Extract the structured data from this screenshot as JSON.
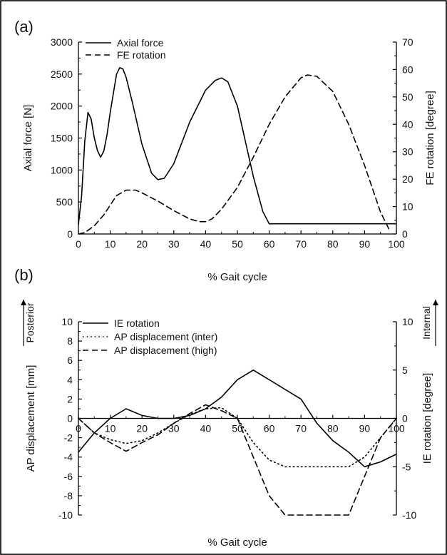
{
  "chart_data": [
    {
      "type": "line",
      "panel_label": "(a)",
      "xlabel": "% Gait cycle",
      "ylabel": "Axial force [N]",
      "y2label": "FE rotation [degree]",
      "xlim": [
        0,
        100
      ],
      "ylim": [
        0,
        3000
      ],
      "y2lim": [
        0,
        70
      ],
      "xticks": [
        "0",
        "10",
        "20",
        "30",
        "40",
        "50",
        "60",
        "70",
        "80",
        "90",
        "100"
      ],
      "yticks": [
        "0",
        "500",
        "1000",
        "1500",
        "2000",
        "2500",
        "3000"
      ],
      "y2ticks": [
        "0",
        "10",
        "20",
        "30",
        "40",
        "50",
        "60",
        "70"
      ],
      "legend_position": "top-left",
      "series": [
        {
          "name": "Axial force",
          "axis": "left",
          "line_style": "solid",
          "x": [
            0,
            1,
            2,
            3,
            4,
            5,
            6,
            7,
            8,
            9,
            10,
            12,
            13,
            14,
            15,
            17,
            20,
            23,
            25,
            27,
            30,
            35,
            40,
            43,
            45,
            47,
            50,
            55,
            58,
            60,
            65,
            70,
            80,
            90,
            95,
            100
          ],
          "y": [
            150,
            600,
            1450,
            1900,
            1800,
            1500,
            1300,
            1200,
            1300,
            1550,
            1900,
            2500,
            2600,
            2580,
            2450,
            2050,
            1400,
            950,
            850,
            870,
            1100,
            1750,
            2250,
            2400,
            2440,
            2380,
            2000,
            900,
            350,
            160,
            160,
            160,
            160,
            160,
            160,
            160
          ]
        },
        {
          "name": "FE rotation",
          "axis": "right",
          "line_style": "dashed",
          "x": [
            0,
            2,
            5,
            8,
            10,
            12,
            15,
            18,
            20,
            25,
            30,
            35,
            38,
            40,
            42,
            45,
            50,
            55,
            60,
            65,
            70,
            72,
            75,
            80,
            85,
            90,
            95,
            98
          ],
          "y": [
            0,
            0.5,
            3,
            7,
            10.5,
            14,
            16,
            16,
            15,
            12,
            8.5,
            5.5,
            4.5,
            4.5,
            5.5,
            9,
            17,
            28,
            40,
            50,
            57,
            58,
            57.5,
            52,
            40,
            25,
            8,
            1
          ]
        }
      ]
    },
    {
      "type": "line",
      "panel_label": "(b)",
      "xlabel": "% Gait cycle",
      "ylabel": "AP displacement [mm]",
      "y2label": "IE rotation [degree]",
      "left_direction_label": "Posterior",
      "right_direction_label": "Internal",
      "xlim": [
        0,
        100
      ],
      "ylim": [
        -10,
        10
      ],
      "y2lim": [
        -10,
        10
      ],
      "xticks": [
        "0",
        "10",
        "20",
        "30",
        "40",
        "50",
        "60",
        "70",
        "80",
        "90",
        "100"
      ],
      "yticks": [
        "-10",
        "-8",
        "-6",
        "-4",
        "-2",
        "0",
        "2",
        "4",
        "6",
        "8",
        "10"
      ],
      "y2ticks": [
        "-10",
        "-5",
        "0",
        "5",
        "10"
      ],
      "legend_position": "top-left",
      "series": [
        {
          "name": "IE rotation",
          "axis": "right",
          "line_style": "solid",
          "x": [
            0,
            5,
            10,
            15,
            20,
            25,
            30,
            35,
            40,
            45,
            50,
            55,
            60,
            65,
            70,
            75,
            80,
            85,
            90,
            95,
            100
          ],
          "y": [
            -3.5,
            -1.5,
            0,
            1,
            0.3,
            0,
            0,
            0.3,
            1,
            2.2,
            4,
            5,
            4,
            3,
            2,
            -0.5,
            -2.3,
            -3.5,
            -5,
            -4.5,
            -3.7
          ]
        },
        {
          "name": "AP displacement (inter)",
          "axis": "left",
          "line_style": "dotted",
          "x": [
            0,
            5,
            10,
            15,
            20,
            25,
            30,
            35,
            40,
            45,
            50,
            55,
            60,
            65,
            70,
            80,
            85,
            90,
            95,
            100
          ],
          "y": [
            0,
            -1.5,
            -2.2,
            -2.6,
            -2.3,
            -1.5,
            -0.5,
            0.4,
            1,
            1.1,
            0,
            -2.5,
            -4.3,
            -5,
            -5,
            -5,
            -5,
            -4,
            -2,
            0
          ]
        },
        {
          "name": "AP displacement (high)",
          "axis": "left",
          "line_style": "dashed",
          "x": [
            0,
            5,
            10,
            15,
            20,
            25,
            30,
            35,
            40,
            45,
            50,
            55,
            60,
            65,
            70,
            80,
            85,
            90,
            95,
            100
          ],
          "y": [
            0,
            -1.5,
            -2.5,
            -3.4,
            -2.5,
            -1.7,
            -0.5,
            0.5,
            1.4,
            0.8,
            0,
            -4,
            -8,
            -10,
            -10,
            -10,
            -10,
            -6,
            -2,
            0
          ]
        }
      ]
    }
  ]
}
